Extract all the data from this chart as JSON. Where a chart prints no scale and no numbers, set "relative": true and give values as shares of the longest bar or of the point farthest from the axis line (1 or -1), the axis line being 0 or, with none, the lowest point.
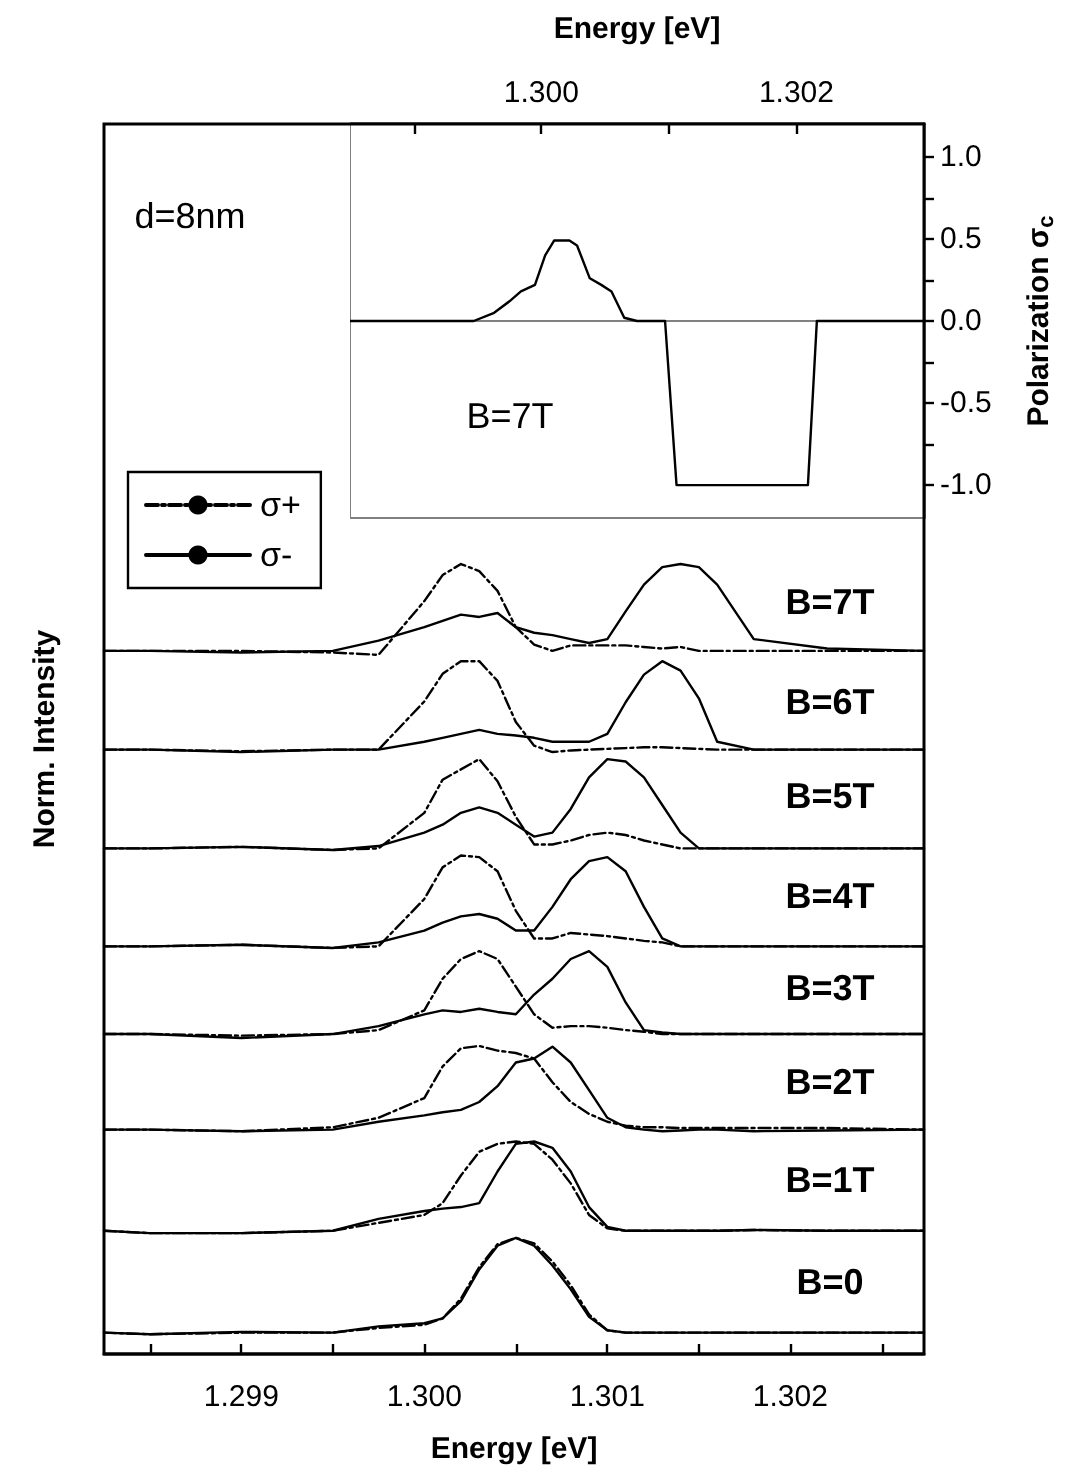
{
  "chart_data": [
    {
      "type": "line",
      "relative": true,
      "xlabel": "Energy [eV]",
      "ylabel": "Norm. Intensity",
      "legend": "top left",
      "xlim": [
        1.29825,
        1.30273
      ],
      "xticks": [
        {
          "value": 1.2985,
          "label": null
        },
        1.299,
        {
          "value": 1.2995,
          "label": null
        },
        {
          "value": 1.3,
          "label": "1.300"
        },
        {
          "value": 1.3005,
          "label": null
        },
        1.301,
        {
          "value": 1.3015,
          "label": null
        },
        1.302,
        {
          "value": 1.3025,
          "label": null
        }
      ],
      "x": [
        1.29825,
        1.2985,
        1.299,
        1.2995,
        1.29975,
        1.3,
        1.3001,
        1.3002,
        1.3003,
        1.3004,
        1.3005,
        1.3006,
        1.3007,
        1.3008,
        1.3009,
        1.301,
        1.3011,
        1.3012,
        1.3013,
        1.3014,
        1.3015,
        1.3016,
        1.3018,
        1.3022,
        1.30273
      ],
      "series": [
        {
          "name": "σ+",
          "color": "#000000",
          "line_style": "dashed",
          "values": [
            0.89,
            0.89,
            0.89,
            0.888,
            0.885,
            0.953,
            0.986,
            1.0,
            0.991,
            0.966,
            0.92,
            0.898,
            0.89,
            0.897,
            0.897,
            0.897,
            0.897,
            0.895,
            0.893,
            0.895,
            0.89,
            0.89,
            0.89,
            0.89,
            0.89
          ]
        },
        {
          "name": "σ-",
          "color": "#000000",
          "line_style": "solid",
          "values": [
            0.89,
            0.89,
            0.888,
            0.89,
            0.903,
            0.92,
            0.928,
            0.936,
            0.933,
            0.938,
            0.92,
            0.913,
            0.91,
            0.905,
            0.9,
            0.905,
            0.94,
            0.974,
            0.996,
            1.0,
            0.996,
            0.974,
            0.905,
            0.893,
            0.89
          ]
        },
        {
          "color": "#000000",
          "line_style": "dashed",
          "values": [
            0.765,
            0.765,
            0.763,
            0.765,
            0.765,
            0.826,
            0.861,
            0.877,
            0.877,
            0.852,
            0.8,
            0.77,
            0.762,
            0.764,
            0.765,
            0.766,
            0.767,
            0.768,
            0.768,
            0.767,
            0.766,
            0.765,
            0.765,
            0.765,
            0.765
          ]
        },
        {
          "color": "#000000",
          "line_style": "solid",
          "values": [
            0.765,
            0.765,
            0.762,
            0.765,
            0.765,
            0.775,
            0.78,
            0.785,
            0.79,
            0.785,
            0.783,
            0.78,
            0.775,
            0.775,
            0.775,
            0.785,
            0.825,
            0.86,
            0.877,
            0.865,
            0.83,
            0.775,
            0.765,
            0.765,
            0.765
          ]
        },
        {
          "color": "#000000",
          "line_style": "dashed",
          "values": [
            0.64,
            0.64,
            0.642,
            0.638,
            0.64,
            0.685,
            0.727,
            0.74,
            0.753,
            0.725,
            0.68,
            0.645,
            0.645,
            0.65,
            0.657,
            0.66,
            0.657,
            0.65,
            0.645,
            0.64,
            0.64,
            0.64,
            0.64,
            0.64,
            0.64
          ]
        },
        {
          "color": "#000000",
          "line_style": "solid",
          "values": [
            0.64,
            0.64,
            0.642,
            0.638,
            0.643,
            0.66,
            0.67,
            0.685,
            0.692,
            0.685,
            0.67,
            0.655,
            0.66,
            0.69,
            0.73,
            0.753,
            0.75,
            0.73,
            0.695,
            0.66,
            0.64,
            0.64,
            0.64,
            0.64,
            0.64
          ]
        },
        {
          "color": "#000000",
          "line_style": "dashed",
          "values": [
            0.516,
            0.516,
            0.518,
            0.514,
            0.516,
            0.576,
            0.616,
            0.631,
            0.629,
            0.611,
            0.561,
            0.526,
            0.526,
            0.533,
            0.531,
            0.529,
            0.526,
            0.523,
            0.521,
            0.516,
            0.516,
            0.516,
            0.516,
            0.516,
            0.516
          ]
        },
        {
          "color": "#000000",
          "line_style": "solid",
          "values": [
            0.516,
            0.516,
            0.518,
            0.514,
            0.521,
            0.536,
            0.546,
            0.554,
            0.557,
            0.551,
            0.536,
            0.536,
            0.566,
            0.601,
            0.624,
            0.629,
            0.611,
            0.566,
            0.526,
            0.516,
            0.516,
            0.516,
            0.516,
            0.516,
            0.516
          ]
        },
        {
          "color": "#000000",
          "line_style": "dashed",
          "values": [
            0.405,
            0.405,
            0.403,
            0.405,
            0.41,
            0.435,
            0.475,
            0.5,
            0.51,
            0.5,
            0.465,
            0.43,
            0.413,
            0.415,
            0.415,
            0.413,
            0.41,
            0.408,
            0.405,
            0.405,
            0.405,
            0.405,
            0.405,
            0.405,
            0.405
          ]
        },
        {
          "color": "#000000",
          "line_style": "solid",
          "values": [
            0.405,
            0.405,
            0.4,
            0.405,
            0.415,
            0.43,
            0.435,
            0.433,
            0.437,
            0.433,
            0.43,
            0.455,
            0.475,
            0.5,
            0.51,
            0.49,
            0.445,
            0.41,
            0.407,
            0.405,
            0.405,
            0.405,
            0.405,
            0.405,
            0.405
          ]
        },
        {
          "color": "#000000",
          "line_style": "dashed",
          "values": [
            0.284,
            0.284,
            0.282,
            0.287,
            0.299,
            0.324,
            0.364,
            0.387,
            0.39,
            0.384,
            0.381,
            0.374,
            0.344,
            0.319,
            0.304,
            0.294,
            0.289,
            0.287,
            0.287,
            0.286,
            0.286,
            0.286,
            0.286,
            0.286,
            0.284
          ]
        },
        {
          "color": "#000000",
          "line_style": "solid",
          "values": [
            0.284,
            0.284,
            0.282,
            0.284,
            0.294,
            0.302,
            0.306,
            0.309,
            0.319,
            0.339,
            0.369,
            0.374,
            0.389,
            0.369,
            0.334,
            0.299,
            0.287,
            0.284,
            0.282,
            0.283,
            0.284,
            0.284,
            0.282,
            0.283,
            0.284
          ]
        },
        {
          "color": "#000000",
          "line_style": "dashed",
          "values": [
            0.156,
            0.153,
            0.153,
            0.156,
            0.166,
            0.176,
            0.191,
            0.226,
            0.256,
            0.266,
            0.269,
            0.266,
            0.246,
            0.216,
            0.176,
            0.159,
            0.156,
            0.156,
            0.156,
            0.156,
            0.156,
            0.156,
            0.157,
            0.156,
            0.156
          ]
        },
        {
          "color": "#000000",
          "line_style": "solid",
          "values": [
            0.156,
            0.153,
            0.153,
            0.156,
            0.171,
            0.181,
            0.184,
            0.186,
            0.191,
            0.231,
            0.266,
            0.269,
            0.261,
            0.231,
            0.186,
            0.161,
            0.156,
            0.156,
            0.156,
            0.156,
            0.156,
            0.156,
            0.157,
            0.156,
            0.156
          ]
        },
        {
          "color": "#000000",
          "line_style": "dashed",
          "values": [
            0.027,
            0.025,
            0.027,
            0.027,
            0.033,
            0.037,
            0.045,
            0.07,
            0.11,
            0.139,
            0.147,
            0.14,
            0.117,
            0.087,
            0.05,
            0.03,
            0.027,
            0.027,
            0.027,
            0.027,
            0.027,
            0.027,
            0.027,
            0.027,
            0.027
          ]
        },
        {
          "color": "#000000",
          "line_style": "solid",
          "values": [
            0.027,
            0.025,
            0.028,
            0.027,
            0.035,
            0.039,
            0.045,
            0.067,
            0.107,
            0.137,
            0.147,
            0.137,
            0.112,
            0.082,
            0.047,
            0.03,
            0.027,
            0.027,
            0.027,
            0.027,
            0.027,
            0.027,
            0.027,
            0.027,
            0.027
          ]
        }
      ],
      "annotations": [
        "d=8nm",
        "B=7T",
        "B=6T",
        "B=5T",
        "B=4T",
        "B=3T",
        "B=2T",
        "B=1T",
        "B=0"
      ]
    },
    {
      "type": "line",
      "xlabel": "Energy [eV]",
      "ylabel": "Polarization σ$_{c}$",
      "xlim": [
        1.2985,
        1.303
      ],
      "xticks": [
        {
          "value": 1.299,
          "label": null
        },
        {
          "value": 1.3,
          "label": "1.300"
        },
        {
          "value": 1.301,
          "label": null
        },
        1.302
      ],
      "ylim": [
        -1.2,
        1.2
      ],
      "yticks": [
        {
          "value": -1,
          "label": "-1.0"
        },
        {
          "value": -0.75,
          "label": null
        },
        -0.5,
        {
          "value": -0.25,
          "label": null
        },
        {
          "value": 0,
          "label": "0.0"
        },
        {
          "value": 0.25,
          "label": null
        },
        0.5,
        {
          "value": 0.75,
          "label": null
        },
        {
          "value": 1,
          "label": "1.0"
        }
      ],
      "ref_lines": [
        {
          "axis": "y",
          "value": 0,
          "color": "#808080"
        }
      ],
      "series": [
        {
          "color": "#000000",
          "x": [
            1.2985,
            1.29947,
            1.29963,
            1.29975,
            1.29984,
            1.29995,
            1.30003,
            1.3001,
            1.30022,
            1.30028,
            1.30038,
            1.30047,
            1.30055,
            1.30065,
            1.30075,
            1.30097,
            1.30106,
            1.30209,
            1.30216,
            1.303
          ],
          "values": [
            0,
            0,
            0.05,
            0.12,
            0.18,
            0.22,
            0.4,
            0.49,
            0.49,
            0.46,
            0.26,
            0.22,
            0.18,
            0.02,
            0,
            0,
            -1,
            -1,
            0,
            0
          ]
        }
      ],
      "annotations": [
        "B=7T"
      ]
    }
  ]
}
